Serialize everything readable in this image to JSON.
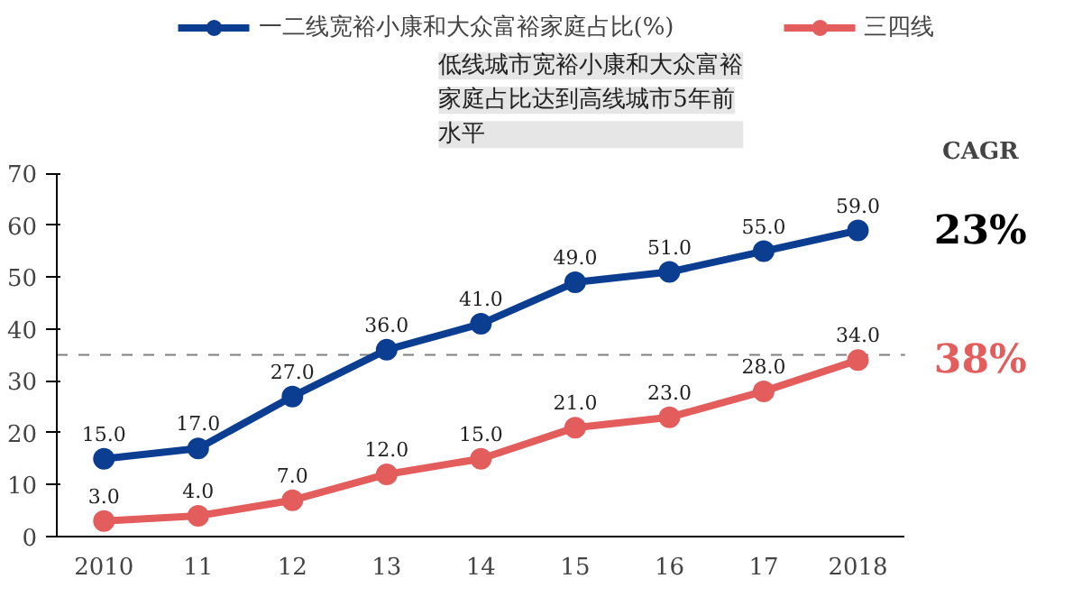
{
  "chart_data": {
    "type": "line",
    "categories": [
      "2010",
      "11",
      "12",
      "13",
      "14",
      "15",
      "16",
      "17",
      "2018"
    ],
    "series": [
      {
        "name": "一二线宽裕小康和大众富裕家庭占比(%)",
        "color": "#0b3d91",
        "values": [
          15,
          17,
          27,
          36,
          41,
          49,
          51,
          55,
          59
        ],
        "value_labels": [
          "15.0",
          "17.0",
          "27.0",
          "36.0",
          "41.0",
          "49.0",
          "51.0",
          "55.0",
          "59.0"
        ]
      },
      {
        "name": "三四线",
        "color": "#e35d5d",
        "values": [
          3,
          4,
          7,
          12,
          15,
          21,
          23,
          28,
          34
        ],
        "value_labels": [
          "3.0",
          "4.0",
          "7.0",
          "12.0",
          "15.0",
          "21.0",
          "23.0",
          "28.0",
          "34.0"
        ]
      }
    ],
    "ylim": [
      0,
      70
    ],
    "yticks": [
      0,
      10,
      20,
      30,
      40,
      50,
      60,
      70
    ],
    "grid": false,
    "legend": "top",
    "marker": "circle",
    "line_style": "solid",
    "ref_lines": [
      {
        "axis": "y",
        "value": 35,
        "color": "#808080",
        "line_style": "dashed"
      }
    ],
    "annotations": [
      "低线城市宽裕小康和大众富裕家庭占比达到高线城市5年前水平",
      "CAGR",
      {
        "text": "23%",
        "x": "2018",
        "y": 59
      },
      {
        "text": "38%",
        "x": "2018",
        "y": 34
      }
    ]
  }
}
